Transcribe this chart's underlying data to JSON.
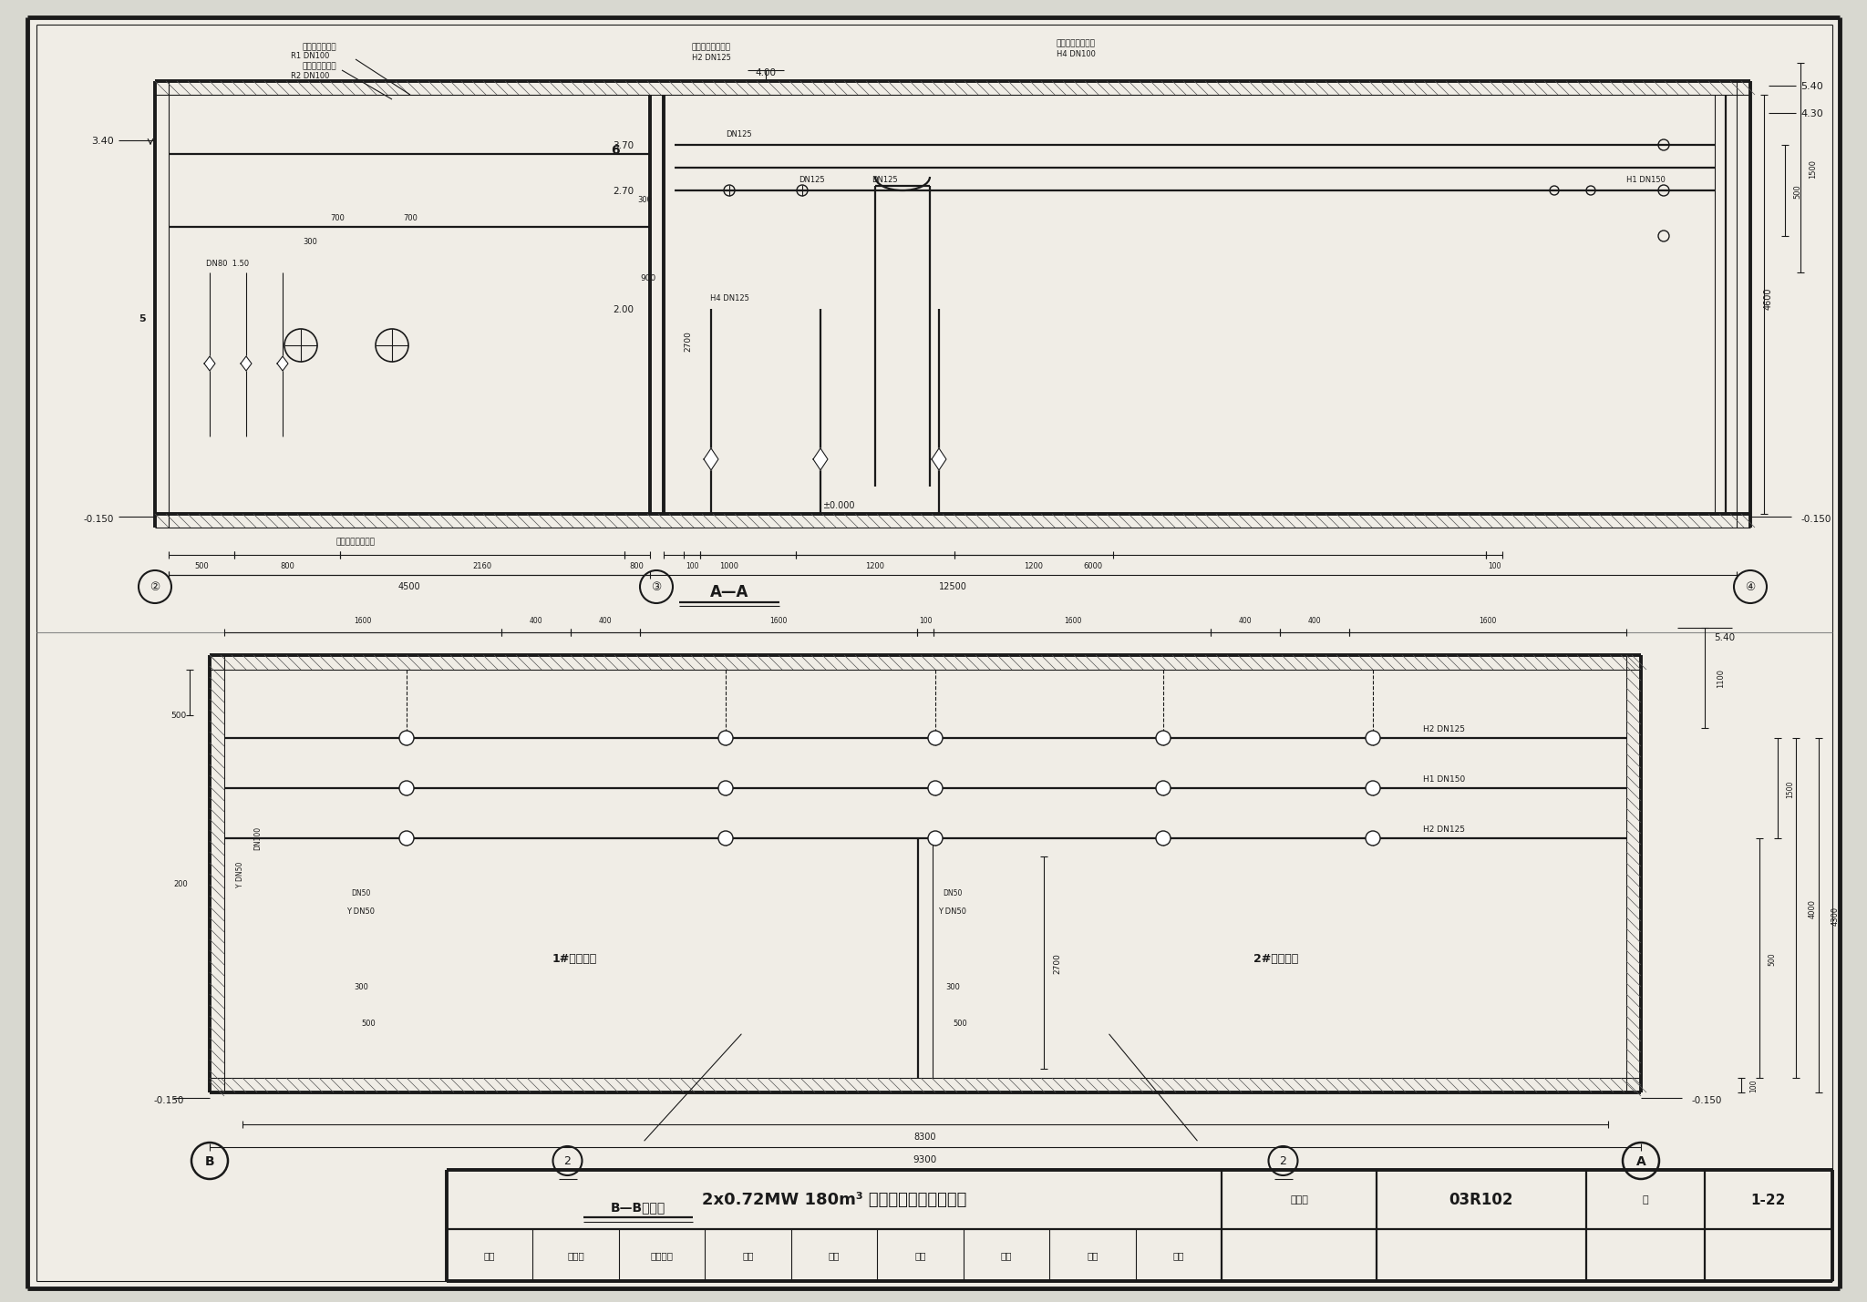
{
  "bg_color": "#d8d8d0",
  "paper_color": "#f0ede6",
  "line_color": "#1a1a1a",
  "title_main": "2x0.72MW 180m³ 蓄热式电锅炉房剪面图",
  "atlas_no_label": "图集号",
  "atlas_no_value": "03R102",
  "page_label": "页",
  "page_value": "1-22",
  "section_aa_label": "A—A",
  "section_bb_label": "B—B断面图",
  "review_label": "审核",
  "review_name": "邮小珍",
  "draw_check": "制图校对",
  "check_name": "余翡",
  "approve_name": "仴翡",
  "design_label": "设计",
  "design_name": "邮練",
  "sign_label": "签名",
  "sign_name": "宇敏",
  "pipe_label_1": "接采暖供水管道",
  "pipe_label_1a": "R1 DN100",
  "pipe_label_2": "接采暖回水管道",
  "pipe_label_2a": "R2 DN100",
  "pipe_label_3": "接电动三通阀出口",
  "pipe_label_3a": "H2 DN125",
  "pipe_label_4": "接热水锅炉回水口",
  "pipe_label_4a": "H4 DN100",
  "label_nitrogen": "接氮气定压罐接口",
  "label_tank1": "1#蓄热水算",
  "label_tank2": "2#蓄热水算"
}
